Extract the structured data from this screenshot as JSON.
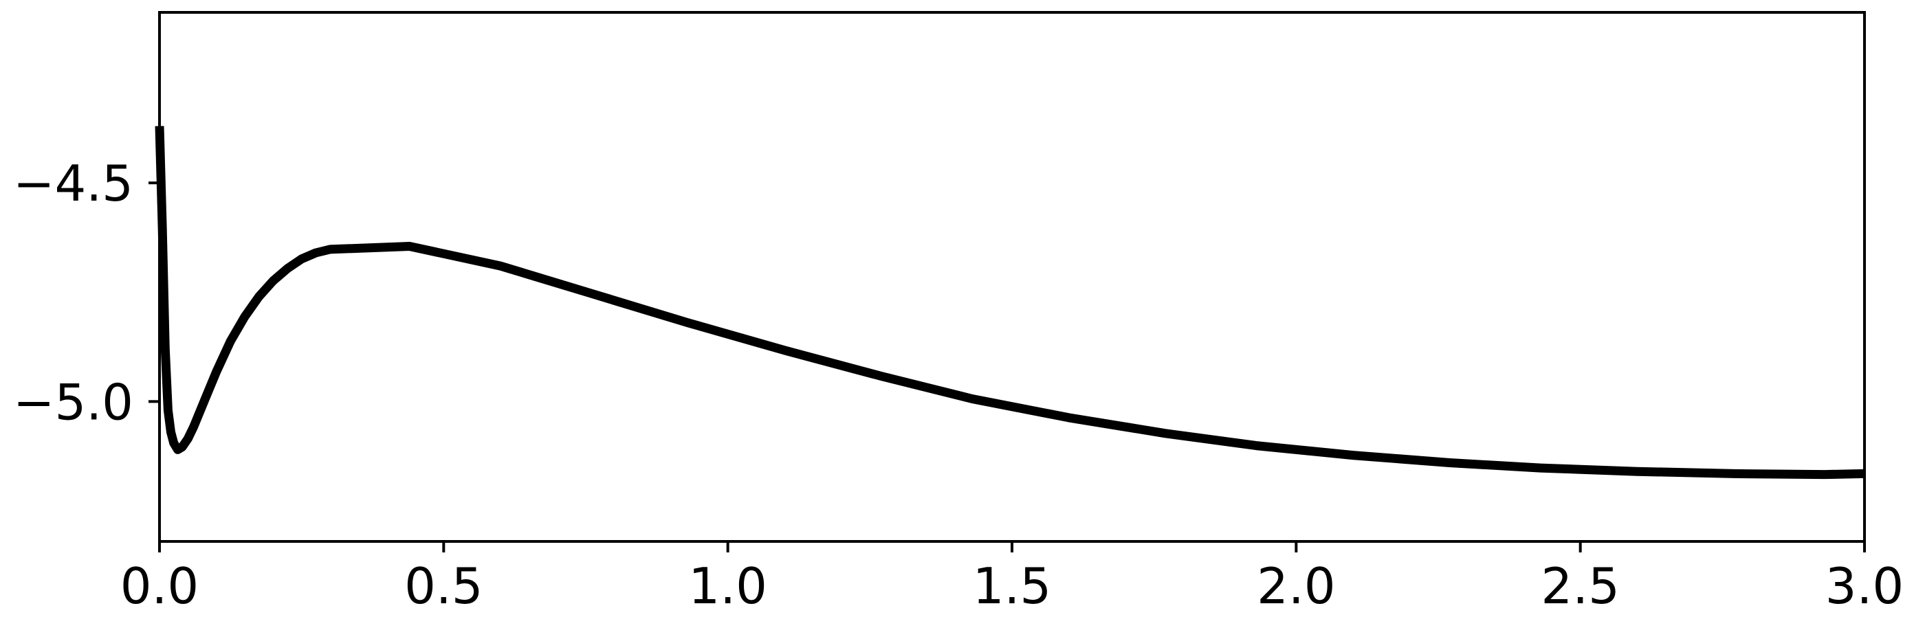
{
  "chart_data": {
    "type": "line",
    "title": "",
    "xlabel": "",
    "ylabel": "",
    "xlim": [
      0.0,
      3.0
    ],
    "ylim": [
      -5.32,
      -4.11
    ],
    "grid": false,
    "x_ticks": [
      {
        "value": 0.0,
        "label": "0.0"
      },
      {
        "value": 0.5,
        "label": "0.5"
      },
      {
        "value": 1.0,
        "label": "1.0"
      },
      {
        "value": 1.5,
        "label": "1.5"
      },
      {
        "value": 2.0,
        "label": "2.0"
      },
      {
        "value": 2.5,
        "label": "2.5"
      },
      {
        "value": 3.0,
        "label": "3.0"
      }
    ],
    "y_ticks": [
      {
        "value": -4.5,
        "label": "−4.5"
      },
      {
        "value": -5.0,
        "label": "−5.0"
      }
    ],
    "series": [
      {
        "color": "#000000",
        "x": [
          0.0,
          0.005,
          0.01,
          0.015,
          0.02,
          0.025,
          0.032,
          0.04,
          0.05,
          0.06,
          0.08,
          0.1,
          0.125,
          0.15,
          0.175,
          0.2,
          0.225,
          0.25,
          0.275,
          0.3,
          0.44,
          0.6,
          0.76,
          0.93,
          1.1,
          1.27,
          1.43,
          1.6,
          1.77,
          1.93,
          2.1,
          2.27,
          2.43,
          2.6,
          2.77,
          2.93,
          3.0
        ],
        "y": [
          -4.37,
          -4.6,
          -4.88,
          -5.02,
          -5.07,
          -5.095,
          -5.11,
          -5.104,
          -5.085,
          -5.058,
          -4.995,
          -4.932,
          -4.862,
          -4.806,
          -4.76,
          -4.724,
          -4.696,
          -4.674,
          -4.66,
          -4.652,
          -4.645,
          -4.69,
          -4.753,
          -4.82,
          -4.883,
          -4.942,
          -4.994,
          -5.037,
          -5.073,
          -5.101,
          -5.123,
          -5.14,
          -5.152,
          -5.16,
          -5.165,
          -5.167,
          -5.165
        ]
      }
    ]
  }
}
